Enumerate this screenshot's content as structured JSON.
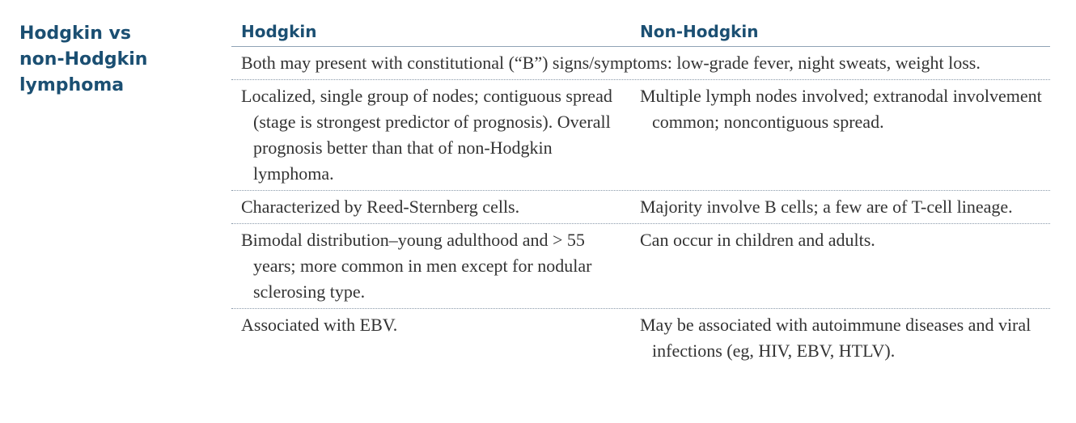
{
  "side_title": {
    "line1": "Hodgkin vs",
    "line2": "non-Hodgkin",
    "line3": "lymphoma"
  },
  "columns": [
    "Hodgkin",
    "Non-Hodgkin"
  ],
  "shared_row": "Both may present with constitutional (“B”) signs/symptoms: low-grade fever, night sweats, weight loss.",
  "rows": [
    {
      "hodgkin": "Localized, single group of nodes; contiguous spread (stage is strongest predictor of prognosis). Overall prognosis better than that of non-Hodgkin lymphoma.",
      "non_hodgkin": "Multiple lymph nodes involved; extranodal involvement common; noncontiguous spread."
    },
    {
      "hodgkin": "Characterized by Reed-Sternberg cells.",
      "non_hodgkin": "Majority involve B cells; a few are of T-cell lineage."
    },
    {
      "hodgkin": "Bimodal distribution–young adulthood and > 55 years; more common in men except for nodular sclerosing type.",
      "non_hodgkin": "Can occur in children and adults."
    },
    {
      "hodgkin": "Associated with EBV.",
      "non_hodgkin": "May be associated with autoimmune diseases and viral infections (eg, HIV, EBV, HTLV)."
    }
  ],
  "colors": {
    "heading": "#1b4f72",
    "body_text": "#333333",
    "rule": "#8fa3b6"
  }
}
